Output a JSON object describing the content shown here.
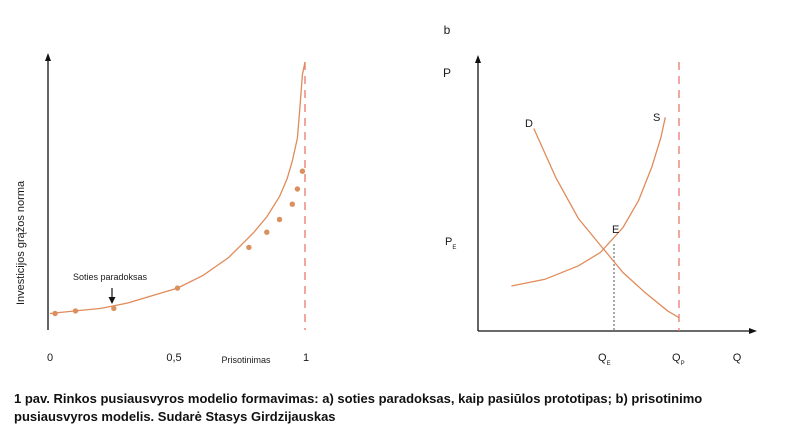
{
  "colors": {
    "curve": "#e08b5a",
    "points": "#d9905e",
    "limit": "#e87a6e",
    "axis": "#111111",
    "guide": "#444444"
  },
  "chart_data": [
    {
      "panel": "a",
      "type": "line",
      "ylabel": "Investicijos grąžos norma",
      "xlabel": "Prisotinimas",
      "xticks": [
        "0",
        "0,5",
        "1"
      ],
      "xlim": [
        0,
        1.05
      ],
      "ylim": [
        0,
        1.0
      ],
      "curve_x": [
        0,
        0.1,
        0.2,
        0.3,
        0.4,
        0.5,
        0.6,
        0.7,
        0.75,
        0.8,
        0.85,
        0.9,
        0.93,
        0.95,
        0.97,
        0.98,
        0.99,
        1.0
      ],
      "curve_y": [
        0.01,
        0.02,
        0.03,
        0.05,
        0.08,
        0.11,
        0.16,
        0.23,
        0.28,
        0.33,
        0.39,
        0.47,
        0.54,
        0.61,
        0.7,
        0.82,
        0.95,
        1.0
      ],
      "points_x": [
        0.02,
        0.1,
        0.25,
        0.5,
        0.78,
        0.85,
        0.9,
        0.95,
        0.97,
        0.99
      ],
      "points_y": [
        0.01,
        0.02,
        0.03,
        0.11,
        0.27,
        0.33,
        0.38,
        0.44,
        0.5,
        0.57
      ],
      "limit_x": 1.0,
      "annotation": {
        "text": "Soties paradoksas",
        "x": 0.25,
        "y": 0.03
      }
    },
    {
      "panel": "b",
      "type": "line",
      "panel_label": "b",
      "ylabel": "P",
      "xlabel": "Q",
      "xlim": [
        0,
        1.1
      ],
      "ylim": [
        0,
        1.0
      ],
      "series": [
        {
          "name": "D",
          "x": [
            0.25,
            0.35,
            0.45,
            0.55,
            0.65,
            0.75,
            0.85,
            0.9
          ],
          "y": [
            0.9,
            0.68,
            0.5,
            0.38,
            0.26,
            0.17,
            0.09,
            0.06
          ]
        },
        {
          "name": "S",
          "x": [
            0.15,
            0.3,
            0.45,
            0.55,
            0.65,
            0.72,
            0.78,
            0.82,
            0.84
          ],
          "y": [
            0.2,
            0.23,
            0.29,
            0.35,
            0.46,
            0.58,
            0.73,
            0.86,
            0.95
          ]
        }
      ],
      "equilibrium": {
        "label": "E",
        "x": 0.6,
        "y": 0.4,
        "q_label": "Q",
        "q_sub": "E",
        "p_label": "P",
        "p_sub": "E"
      },
      "saturation": {
        "x": 0.9,
        "q_label": "Q",
        "q_sub": "P"
      }
    }
  ],
  "caption": "1 pav. Rinkos pusiausvyros modelio formavimas: a) soties paradoksas, kaip pasiūlos prototipas; b) prisotinimo pusiausvyros modelis. Sudarė Stasys Girdzijauskas"
}
